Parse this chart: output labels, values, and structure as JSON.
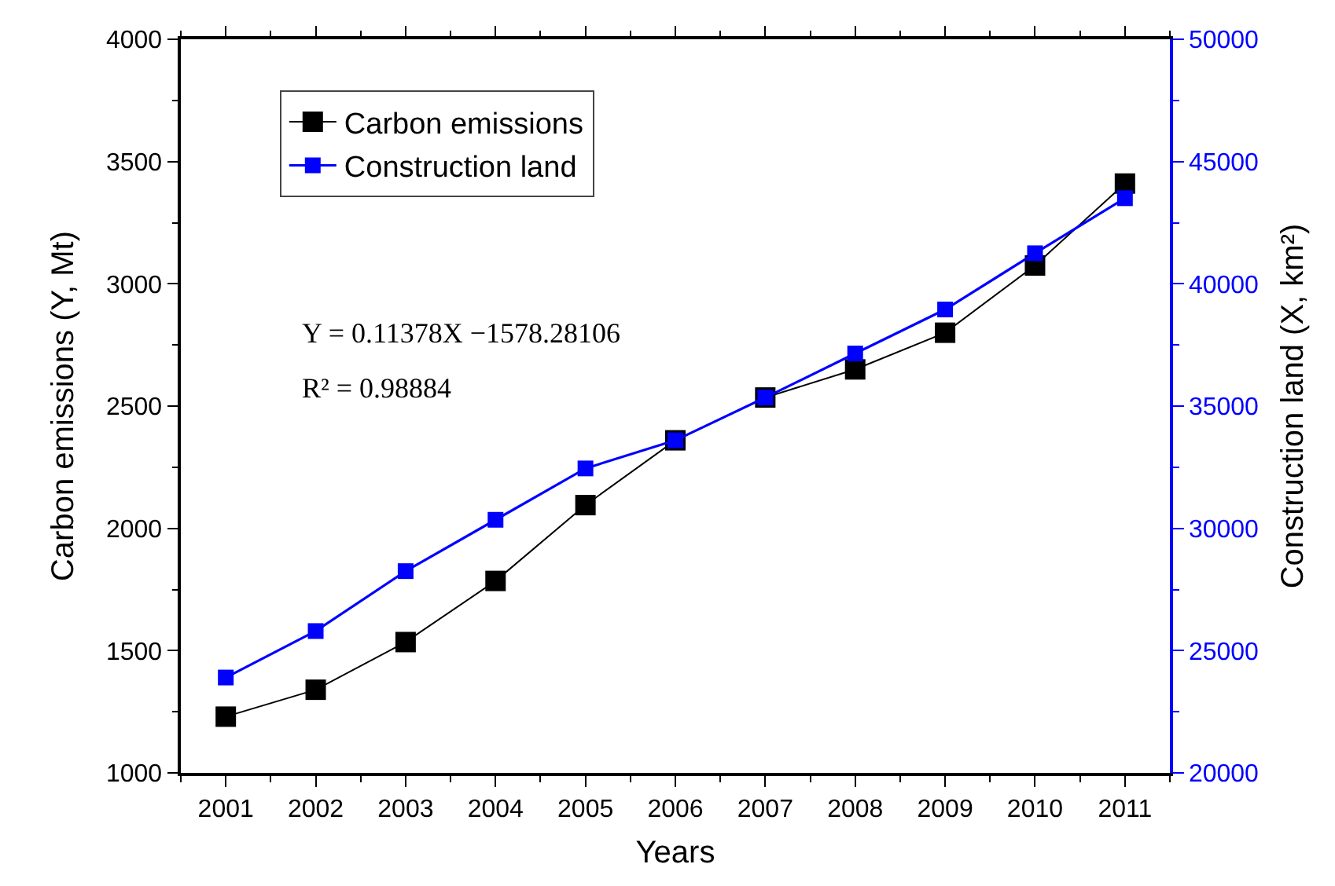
{
  "chart_data": {
    "type": "line",
    "xlabel": "Years",
    "ylabel": "Carbon emissions (Y, Mt)",
    "y2label": "Construction land (X, km²)",
    "x": [
      2001,
      2002,
      2003,
      2004,
      2005,
      2006,
      2007,
      2008,
      2009,
      2010,
      2011
    ],
    "series": [
      {
        "name": "Carbon emissions",
        "color": "#000000",
        "values": [
          1230,
          1340,
          1535,
          1785,
          2095,
          2360,
          2535,
          2650,
          2800,
          3075,
          3410
        ]
      },
      {
        "name": "Construction land",
        "color": "#0000ff",
        "axis": "y2",
        "values": [
          23900,
          25800,
          28250,
          30350,
          32450,
          33600,
          35350,
          37150,
          38950,
          41250,
          43500
        ]
      }
    ],
    "xlim": [
      2000.5,
      2011.5
    ],
    "xticks": [
      2001,
      2002,
      2003,
      2004,
      2005,
      2006,
      2007,
      2008,
      2009,
      2010,
      2011
    ],
    "ylim": [
      1000,
      4000
    ],
    "yticks": [
      1000,
      1500,
      2000,
      2500,
      3000,
      3500,
      4000
    ],
    "y2lim": [
      20000,
      50000
    ],
    "y2ticks": [
      20000,
      25000,
      30000,
      35000,
      40000,
      45000,
      50000
    ],
    "annotations": [
      "Y = 0.11378X −1578.28106",
      "R² = 0.98884"
    ],
    "legend": "top left",
    "marker": "square",
    "line_style": "solid"
  }
}
